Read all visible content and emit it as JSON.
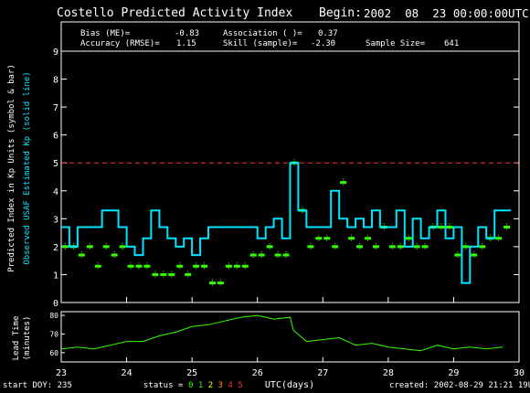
{
  "header": {
    "title": "Costello Predicted Activity Index",
    "begin_label": "Begin:",
    "begin_value": "2002  08  23 00:00:00UTC"
  },
  "stats": [
    {
      "label": "Bias (ME)=",
      "value": "-0.83"
    },
    {
      "label": "Association ( )=",
      "value": "0.37"
    },
    {
      "label": "Accuracy (RMSE)=",
      "value": "1.15"
    },
    {
      "label": "Skill (sample)=",
      "value": "-2.30"
    },
    {
      "label": "Sample Size=",
      "value": "641"
    }
  ],
  "axes": {
    "ylabel_main": "Predicted Index in Kp Units (symbol & bar)",
    "ylabel_observed": "Observed USAF Estimated Kp (solid line)",
    "ylabel_lead": "Lead Time\n(minutes)",
    "xlabel": "UTC(days)"
  },
  "footer": {
    "start_doy": "start DOY: 235",
    "status_label": "status =",
    "status_values": [
      "0",
      "1",
      "2",
      "3",
      "4",
      "5"
    ],
    "created": "created: 2002-08-29 21:21 19UTC"
  },
  "colors": {
    "observed": "#00e5ff",
    "predicted": "#33ff00",
    "threshold": "#ff3030",
    "status": [
      "#33ff00",
      "#33ff00",
      "#ffff00",
      "#ff9900",
      "#ff3030",
      "#ff3030"
    ]
  },
  "chart_data": [
    {
      "type": "line",
      "title": "Costello Predicted Activity Index",
      "xlim": [
        23,
        30
      ],
      "ylim": [
        0,
        9
      ],
      "x_ticks": [
        "23",
        "24",
        "25",
        "26",
        "27",
        "28",
        "29",
        "30"
      ],
      "y_ticks": [
        "0",
        "1",
        "2",
        "3",
        "4",
        "5",
        "6",
        "7",
        "8",
        "9"
      ],
      "threshold": 5,
      "series": [
        {
          "name": "Observed USAF Estimated Kp",
          "style": "step",
          "x": [
            23.0,
            23.125,
            23.25,
            23.375,
            23.5,
            23.625,
            23.75,
            23.875,
            24.0,
            24.125,
            24.25,
            24.375,
            24.5,
            24.625,
            24.75,
            24.875,
            25.0,
            25.125,
            25.25,
            25.375,
            25.5,
            25.625,
            25.75,
            25.875,
            26.0,
            26.125,
            26.25,
            26.375,
            26.5,
            26.625,
            26.75,
            26.875,
            27.0,
            27.125,
            27.25,
            27.375,
            27.5,
            27.625,
            27.75,
            27.875,
            28.0,
            28.125,
            28.25,
            28.375,
            28.5,
            28.625,
            28.75,
            28.875,
            29.0,
            29.125,
            29.25,
            29.375,
            29.5,
            29.625,
            29.75
          ],
          "y": [
            2.7,
            2.0,
            2.7,
            2.7,
            2.7,
            3.3,
            3.3,
            2.7,
            2.0,
            1.7,
            2.3,
            3.3,
            2.7,
            2.3,
            2.0,
            2.3,
            1.7,
            2.3,
            2.7,
            2.7,
            2.7,
            2.7,
            2.7,
            2.7,
            2.3,
            2.7,
            3.0,
            2.3,
            5.0,
            3.3,
            2.7,
            2.7,
            2.7,
            4.0,
            3.0,
            2.7,
            3.0,
            2.7,
            3.3,
            2.7,
            2.7,
            3.3,
            2.0,
            3.0,
            2.3,
            2.7,
            3.3,
            2.3,
            2.7,
            0.7,
            2.0,
            2.7,
            2.3,
            3.3,
            3.3
          ]
        },
        {
          "name": "Predicted Index",
          "style": "symbol",
          "x": [
            23.0,
            23.125,
            23.25,
            23.375,
            23.5,
            23.625,
            23.75,
            23.875,
            24.0,
            24.125,
            24.25,
            24.375,
            24.5,
            24.625,
            24.75,
            24.875,
            25.0,
            25.125,
            25.25,
            25.375,
            25.5,
            25.625,
            25.75,
            25.875,
            26.0,
            26.125,
            26.25,
            26.375,
            26.5,
            26.625,
            26.75,
            26.875,
            27.0,
            27.125,
            27.25,
            27.375,
            27.5,
            27.625,
            27.75,
            27.875,
            28.0,
            28.125,
            28.25,
            28.375,
            28.5,
            28.625,
            28.75,
            28.875,
            29.0,
            29.125,
            29.25,
            29.375,
            29.5,
            29.625,
            29.75
          ],
          "y": [
            2.0,
            2.0,
            1.7,
            2.0,
            1.3,
            2.0,
            1.7,
            2.0,
            1.3,
            1.3,
            1.3,
            1.0,
            1.0,
            1.0,
            1.3,
            1.0,
            1.3,
            1.3,
            0.7,
            0.7,
            1.3,
            1.3,
            1.3,
            1.7,
            1.7,
            2.0,
            1.7,
            1.7,
            5.0,
            3.3,
            2.0,
            2.3,
            2.3,
            2.0,
            4.3,
            2.3,
            2.0,
            2.3,
            2.0,
            2.7,
            2.0,
            2.0,
            2.3,
            2.0,
            2.0,
            2.7,
            2.7,
            2.7,
            1.7,
            2.0,
            1.7,
            2.0,
            2.3,
            2.3,
            2.7
          ]
        }
      ]
    },
    {
      "type": "line",
      "title": "",
      "xlim": [
        23,
        30
      ],
      "ylim": [
        55,
        82
      ],
      "y_ticks": [
        "60",
        "70",
        "80"
      ],
      "series": [
        {
          "name": "Lead Time",
          "x": [
            23.0,
            23.25,
            23.5,
            23.75,
            24.0,
            24.25,
            24.5,
            24.75,
            25.0,
            25.25,
            25.5,
            25.75,
            26.0,
            26.25,
            26.5,
            26.55,
            26.75,
            27.0,
            27.25,
            27.5,
            27.75,
            28.0,
            28.25,
            28.5,
            28.75,
            29.0,
            29.25,
            29.5,
            29.75
          ],
          "y": [
            62,
            63,
            62,
            64,
            66,
            66,
            69,
            71,
            74,
            75,
            77,
            79,
            80,
            78,
            79,
            72,
            66,
            67,
            68,
            64,
            65,
            63,
            62,
            61,
            64,
            62,
            63,
            62,
            63
          ]
        }
      ]
    }
  ]
}
